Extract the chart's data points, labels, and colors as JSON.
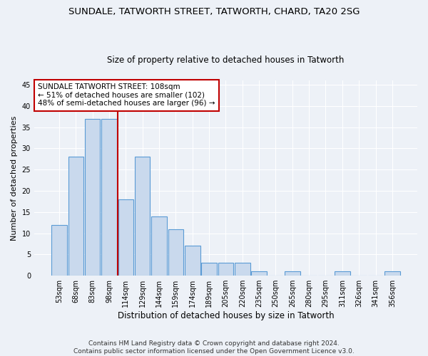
{
  "title1": "SUNDALE, TATWORTH STREET, TATWORTH, CHARD, TA20 2SG",
  "title2": "Size of property relative to detached houses in Tatworth",
  "xlabel": "Distribution of detached houses by size in Tatworth",
  "ylabel": "Number of detached properties",
  "categories": [
    "53sqm",
    "68sqm",
    "83sqm",
    "98sqm",
    "114sqm",
    "129sqm",
    "144sqm",
    "159sqm",
    "174sqm",
    "189sqm",
    "205sqm",
    "220sqm",
    "235sqm",
    "250sqm",
    "265sqm",
    "280sqm",
    "295sqm",
    "311sqm",
    "326sqm",
    "341sqm",
    "356sqm"
  ],
  "values": [
    12,
    28,
    37,
    37,
    18,
    28,
    14,
    11,
    7,
    3,
    3,
    3,
    1,
    0,
    1,
    0,
    0,
    1,
    0,
    0,
    1
  ],
  "bar_color": "#c9d9ed",
  "bar_edge_color": "#5b9bd5",
  "vline_color": "#c00000",
  "annotation_text": "SUNDALE TATWORTH STREET: 108sqm\n← 51% of detached houses are smaller (102)\n48% of semi-detached houses are larger (96) →",
  "annotation_box_color": "#ffffff",
  "annotation_box_edge": "#c00000",
  "ylim": [
    0,
    46
  ],
  "yticks": [
    0,
    5,
    10,
    15,
    20,
    25,
    30,
    35,
    40,
    45
  ],
  "footer": "Contains HM Land Registry data © Crown copyright and database right 2024.\nContains public sector information licensed under the Open Government Licence v3.0.",
  "bg_color": "#edf1f7",
  "plot_bg": "#edf1f7",
  "grid_color": "#ffffff",
  "title1_fontsize": 9.5,
  "title2_fontsize": 8.5,
  "xlabel_fontsize": 8.5,
  "ylabel_fontsize": 8,
  "tick_fontsize": 7,
  "footer_fontsize": 6.5,
  "annot_fontsize": 7.5
}
